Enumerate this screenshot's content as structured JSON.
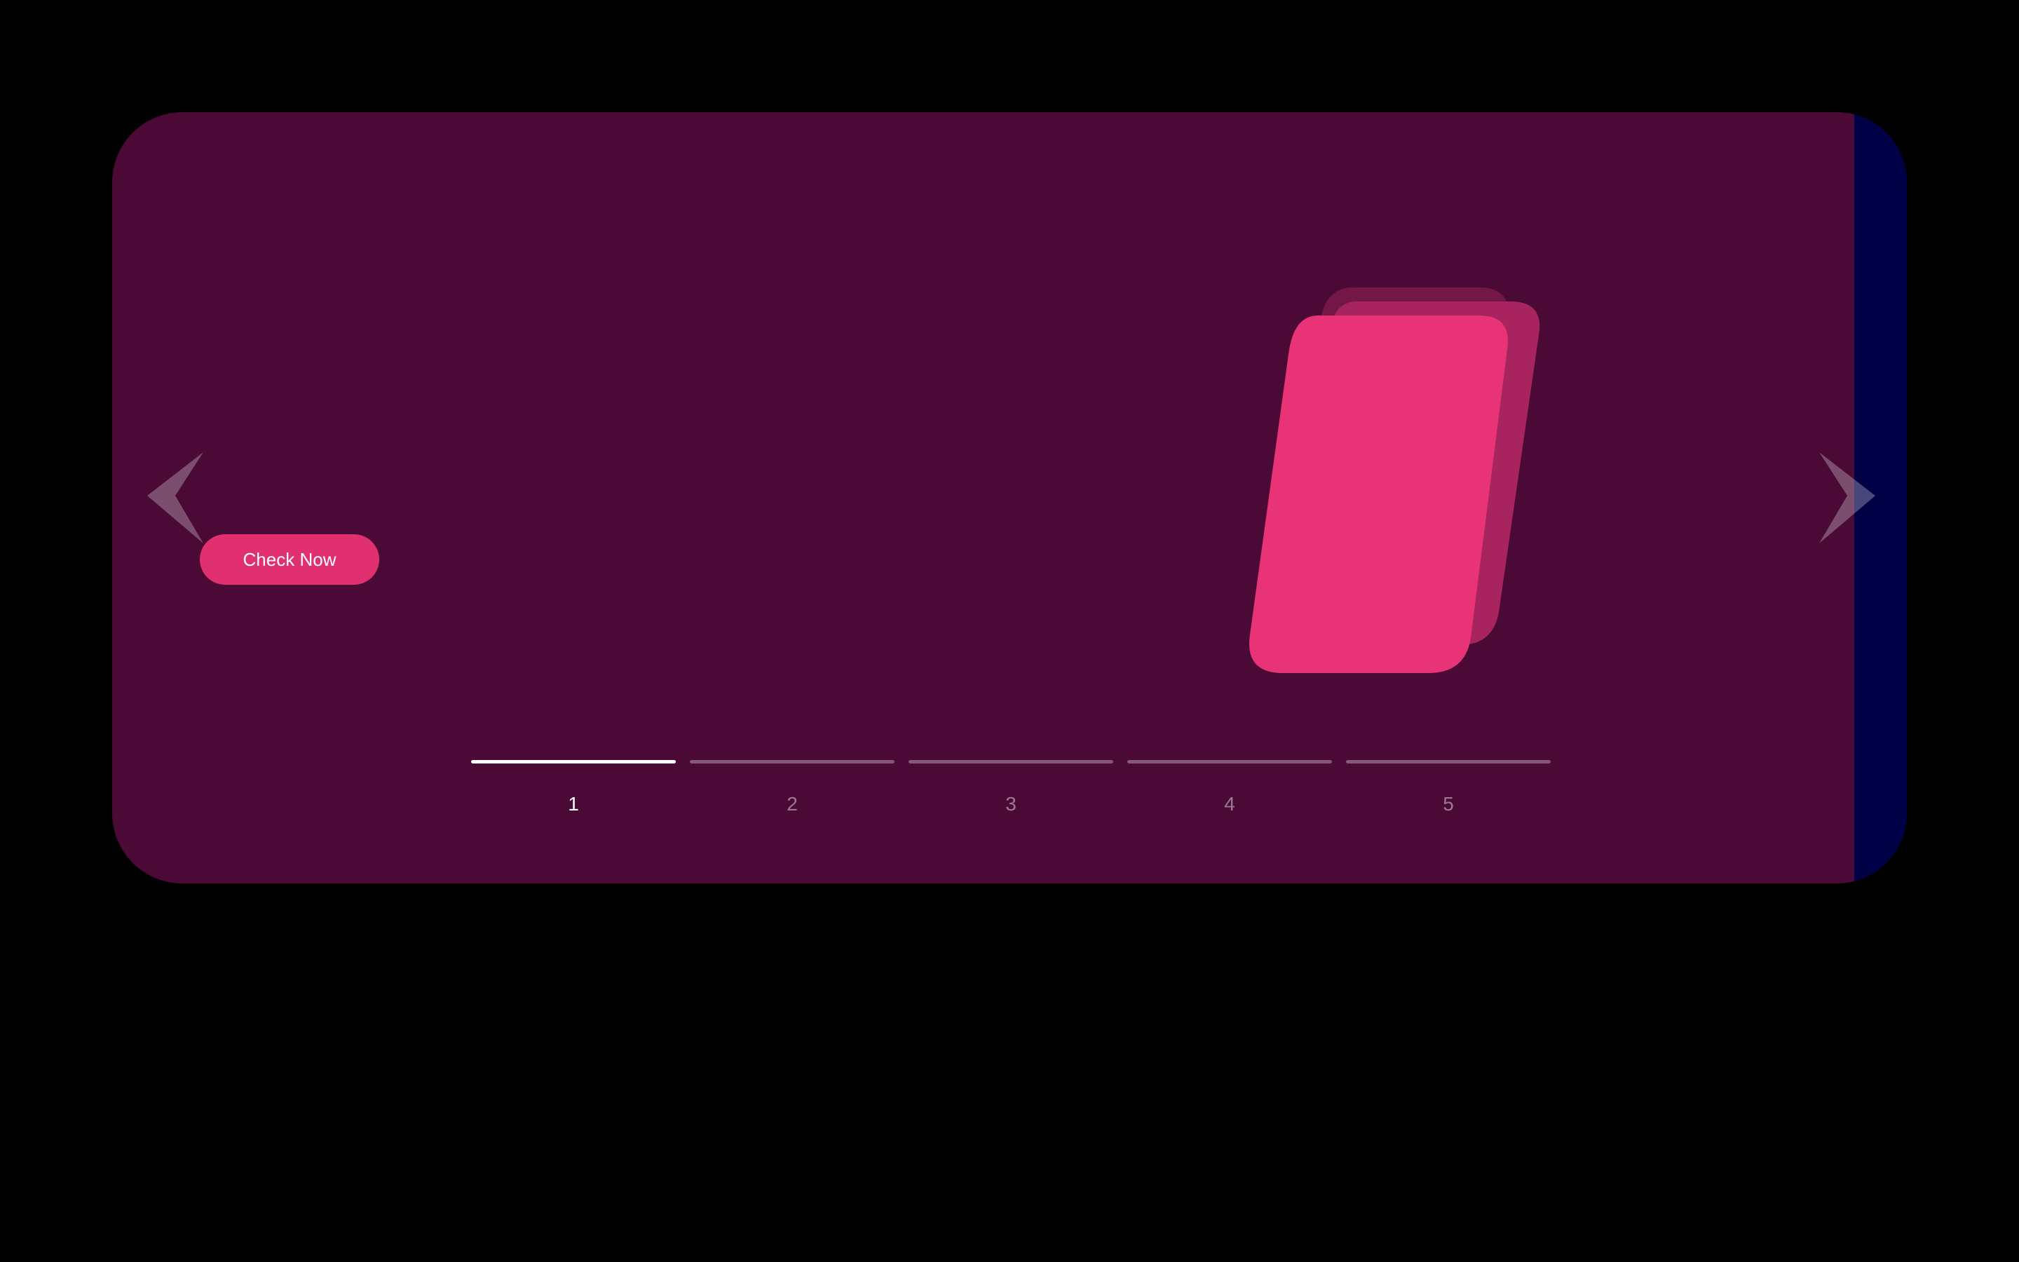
{
  "slide": {
    "cta_label": "Check Now",
    "background_color": "#4a0a35",
    "next_slide_color": "#000046",
    "accent_color": "#e0306f",
    "card_color": "#e93377"
  },
  "navigation": {
    "prev_icon": "chevron-left-icon",
    "next_icon": "chevron-right-icon"
  },
  "pager": {
    "active_index": 0,
    "items": [
      {
        "label": "1"
      },
      {
        "label": "2"
      },
      {
        "label": "3"
      },
      {
        "label": "4"
      },
      {
        "label": "5"
      }
    ]
  }
}
